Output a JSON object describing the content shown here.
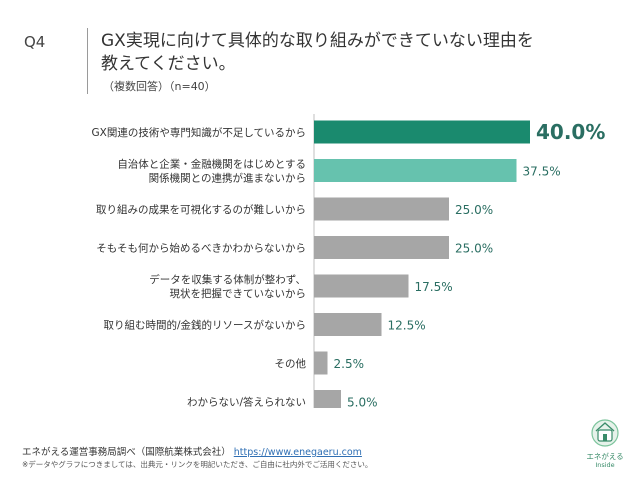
{
  "header": {
    "question_no": "Q4",
    "title_line1": "GX実現に向けて具体的な取り組みができていない理由を",
    "title_line2": "教えてください。",
    "subtitle": "（複数回答）（n=40）"
  },
  "chart_data": {
    "type": "bar",
    "orientation": "horizontal",
    "categories": [
      [
        "GX関連の技術や専門知識が不足しているから"
      ],
      [
        "自治体と企業・金融機関をはじめとする",
        "関係機関との連携が進まないから"
      ],
      [
        "取り組みの成果を可視化するのが難しいから"
      ],
      [
        "そもそも何から始めるべきかわからないから"
      ],
      [
        "データを収集する体制が整わず、",
        "現状を把握できていないから"
      ],
      [
        "取り組む時間的/金銭的リソースがないから"
      ],
      [
        "その他"
      ],
      [
        "わからない/答えられない"
      ]
    ],
    "values": [
      40.0,
      37.5,
      25.0,
      25.0,
      17.5,
      12.5,
      2.5,
      5.0
    ],
    "value_labels": [
      "40.0%",
      "37.5%",
      "25.0%",
      "25.0%",
      "17.5%",
      "12.5%",
      "2.5%",
      "5.0%"
    ],
    "bar_colors": [
      "#1a8a6e",
      "#66c2ae",
      "#a6a6a6",
      "#a6a6a6",
      "#a6a6a6",
      "#a6a6a6",
      "#a6a6a6",
      "#a6a6a6"
    ],
    "xlim": [
      0,
      40
    ],
    "grid": false,
    "legend": "none"
  },
  "footer": {
    "source_text": "エネがえる運営事務局調べ（国際航業株式会社）",
    "source_url": "https://www.enegaeru.com",
    "note": "※データやグラフにつきましては、出典元・リンクを明記いただき、ご自由に社内外でご活用ください。"
  },
  "logo": {
    "name": "エネがえる",
    "sub": "Inside"
  }
}
